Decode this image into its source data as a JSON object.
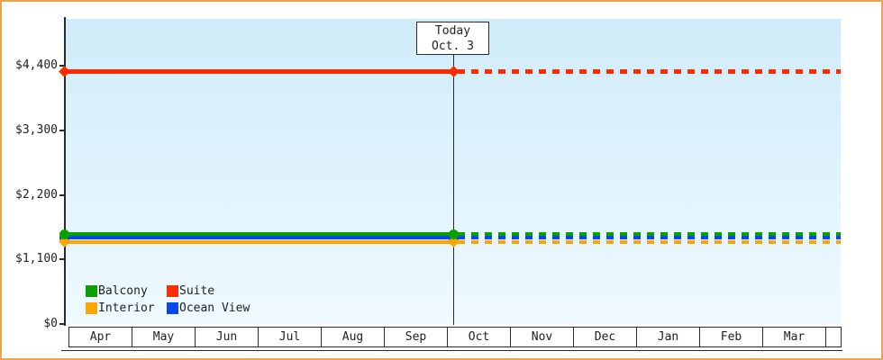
{
  "frame": {
    "border_color": "#eba552",
    "background_color": "#ffffff",
    "plot_gradient_top": "#cfecfa",
    "plot_gradient_bottom": "#effaff",
    "axis_color": "#2a2a2a"
  },
  "chart_data": {
    "type": "line",
    "title": "",
    "description": "Cruise cabin price history/forecast: flat price lines, solid before today, dotted after today",
    "x_categories": [
      "Apr",
      "May",
      "Jun",
      "Jul",
      "Aug",
      "Sep",
      "Oct",
      "Nov",
      "Dec",
      "Jan",
      "Feb",
      "Mar"
    ],
    "y_axis": {
      "ticks": [
        {
          "label": "$0",
          "value": 0
        },
        {
          "label": "$1,100",
          "value": 1100
        },
        {
          "label": "$2,200",
          "value": 2200
        },
        {
          "label": "$3,300",
          "value": 3300
        },
        {
          "label": "$4,400",
          "value": 4400
        }
      ],
      "ylim": [
        0,
        5180
      ],
      "gridlines": false
    },
    "today_marker": {
      "month": "Oct",
      "day": 3,
      "days_in_month": 31,
      "label_line1": "Today",
      "label_line2": "Oct. 3"
    },
    "series": [
      {
        "name": "Balcony",
        "color": "#0aa000",
        "value": 1530,
        "marker": "circle",
        "style": "solid before today, dotted after"
      },
      {
        "name": "Suite",
        "color": "#ff2a00",
        "value": 4300,
        "marker": "diamond",
        "style": "solid before today, dotted after"
      },
      {
        "name": "Interior",
        "color": "#ffa500",
        "value": 1400,
        "marker": "diamond",
        "style": "solid before today, dotted after"
      },
      {
        "name": "Ocean View",
        "color": "#0747f0",
        "value": 1470,
        "marker": "circle",
        "style": "solid before today, dotted after"
      }
    ],
    "legend_position": "bottom-left"
  },
  "legend": {
    "items": [
      {
        "label": "Balcony",
        "color": "#0aa000"
      },
      {
        "label": "Suite",
        "color": "#ff2a00"
      },
      {
        "label": "Interior",
        "color": "#ffa500"
      },
      {
        "label": "Ocean View",
        "color": "#0747f0"
      }
    ]
  }
}
